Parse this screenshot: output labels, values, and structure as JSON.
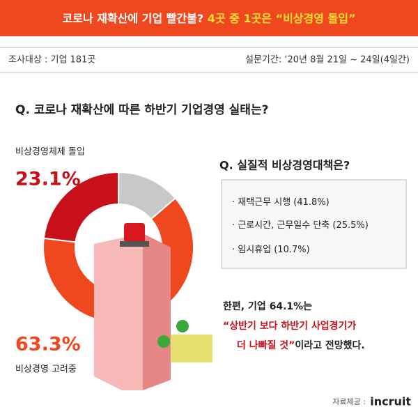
{
  "header": {
    "title": "코로나 재확산에 기업 빨간불?",
    "highlight": "4곳 중 1곳은 “비상경영 돌입”"
  },
  "survey": {
    "target": "조사대상 :  기업 181곳",
    "period": "설문기간: ‘20년 8월 21일 ~ 24일(4일간)"
  },
  "chart_data": {
    "type": "pie",
    "title": "Q. 코로나 재확산에 따른 하반기 기업경영 실태는?",
    "categories": [
      "비상경영체제 돌입",
      null,
      "비상경영 고려중"
    ],
    "values": [
      23.1,
      13.6,
      63.3
    ],
    "value_labels": [
      "23.1%",
      null,
      "63.3%"
    ],
    "colors": [
      "#c8101a",
      "#c8c8c8",
      "#f0481e"
    ],
    "donut": true
  },
  "measures": {
    "title": "Q. 실질적 비상경영대책은?",
    "items": [
      "재택근무 시행 (41.8%)",
      "근로시간, 근무일수 단축 (25.5%)",
      "임시휴업 (10.7%)"
    ]
  },
  "conclusion": {
    "lead": "한편, 기업 64.1%는",
    "quote1": "“상반기 보다 하반기 사업경기가",
    "quote2": "더 나빠질 것”",
    "tail": "이라고 전망했다."
  },
  "source": {
    "label": "자료제공 :",
    "brand": "incruit"
  }
}
